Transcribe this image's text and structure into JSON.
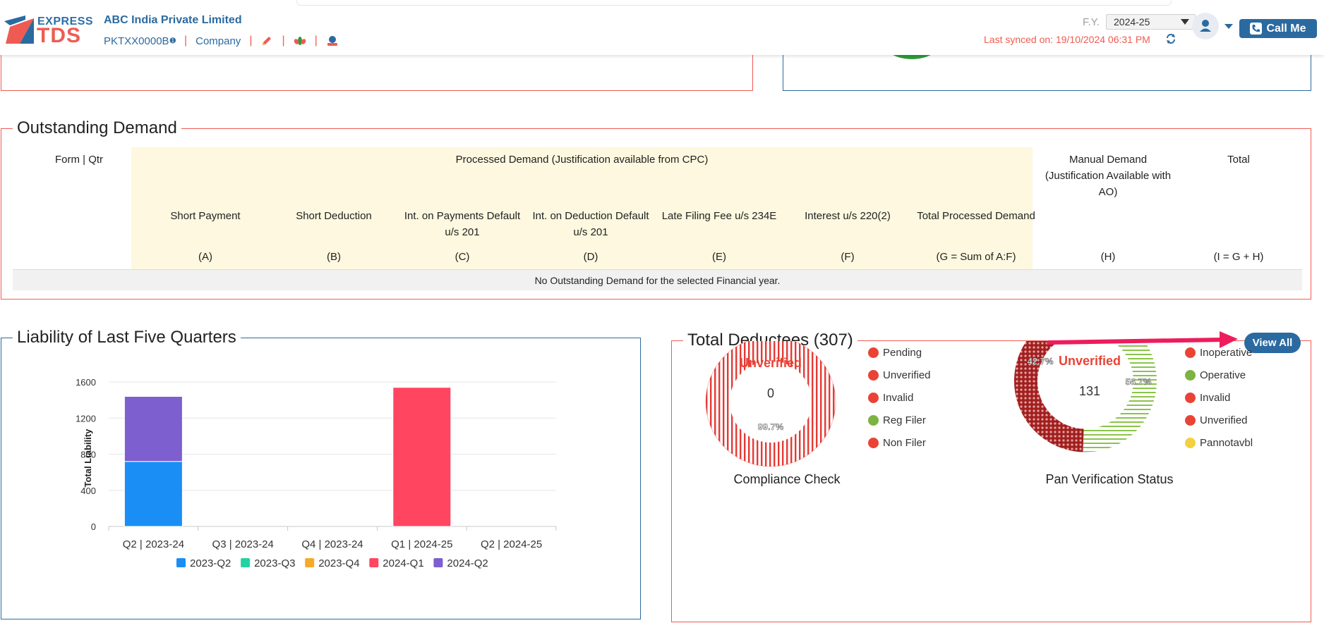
{
  "header": {
    "logo_express": "EXPRESS",
    "logo_tds": "TDS",
    "company_name": "ABC India Private Limited",
    "tan": "PKTXX0000B",
    "company_type": "Company",
    "fy_label": "F.Y.",
    "fy_value": "2024-25",
    "last_synced": "Last synced on: 19/10/2024 06:31 PM",
    "call_me": "Call Me"
  },
  "outstanding_demand": {
    "title": "Outstanding Demand",
    "col_form_qtr": "Form | Qtr",
    "processed_header": "Processed Demand (Justification available from CPC)",
    "columns": [
      {
        "label": "Short Payment",
        "code": "(A)"
      },
      {
        "label": "Short Deduction",
        "code": "(B)"
      },
      {
        "label": "Int. on Payments Default u/s 201",
        "code": "(C)"
      },
      {
        "label": "Int. on Deduction Default u/s 201",
        "code": "(D)"
      },
      {
        "label": "Late Filing Fee u/s 234E",
        "code": "(E)"
      },
      {
        "label": "Interest u/s 220(2)",
        "code": "(F)"
      },
      {
        "label": "Total Processed Demand",
        "code": "(G = Sum of A:F)"
      }
    ],
    "manual_header": "Manual Demand (Justification Available with AO)",
    "manual_code": "(H)",
    "total_header": "Total",
    "total_code": "(I = G + H)",
    "empty_message": "No Outstanding Demand for the selected Financial year."
  },
  "liability": {
    "title": "Liability of Last Five Quarters"
  },
  "chart_data": {
    "type": "bar",
    "stacked": true,
    "categories": [
      "Q2 | 2023-24",
      "Q3 | 2023-24",
      "Q4 | 2023-24",
      "Q1 | 2024-25",
      "Q2 | 2024-25"
    ],
    "series": [
      {
        "name": "2023-Q2",
        "color": "#1a8ef5",
        "values": [
          720,
          0,
          0,
          0,
          0
        ]
      },
      {
        "name": "2023-Q3",
        "color": "#22d3a0",
        "values": [
          0,
          0,
          0,
          0,
          0
        ]
      },
      {
        "name": "2023-Q4",
        "color": "#f7a928",
        "values": [
          0,
          0,
          0,
          0,
          0
        ]
      },
      {
        "name": "2024-Q1",
        "color": "#ff4560",
        "values": [
          0,
          0,
          0,
          1540,
          0
        ]
      },
      {
        "name": "2024-Q2",
        "color": "#7d5fd0",
        "values": [
          720,
          0,
          0,
          0,
          0
        ]
      }
    ],
    "ylabel": "Total Liability",
    "ylim": [
      0,
      1600
    ],
    "yticks": [
      0,
      400,
      800,
      1200,
      1600
    ],
    "legend_position": "bottom",
    "grid": true
  },
  "deductees": {
    "title": "Total Deductees (307)",
    "view_all": "View All",
    "compliance": {
      "title": "Compliance Check",
      "center_label": "Unverified",
      "center_value": "0",
      "slice_label": "99.7%",
      "legend": [
        {
          "label": "Pending",
          "color": "#ea4335"
        },
        {
          "label": "Unverified",
          "color": "#ea4335"
        },
        {
          "label": "Invalid",
          "color": "#ea4335"
        },
        {
          "label": "Reg Filer",
          "color": "#7cb342"
        },
        {
          "label": "Non Filer",
          "color": "#ea4335"
        }
      ]
    },
    "pan": {
      "title": "Pan Verification Status",
      "center_label": "Unverified",
      "center_value": "131",
      "slice_left": "42.7%",
      "slice_right": "56.7%",
      "legend": [
        {
          "label": "Inoperative",
          "color": "#ea4335"
        },
        {
          "label": "Operative",
          "color": "#7cb342"
        },
        {
          "label": "Invalid",
          "color": "#ea4335"
        },
        {
          "label": "Unverified",
          "color": "#ea4335"
        },
        {
          "label": "Pannotavbl",
          "color": "#f4d03f"
        }
      ]
    }
  }
}
